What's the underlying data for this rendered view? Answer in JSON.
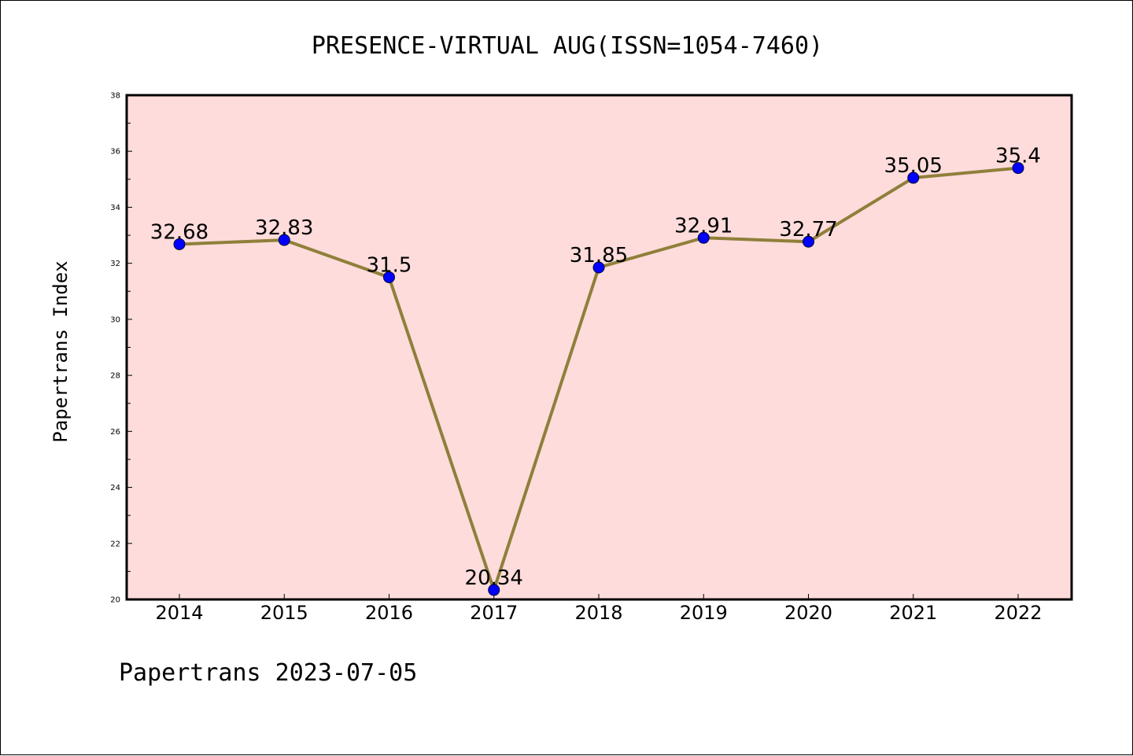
{
  "chart_data": {
    "type": "line",
    "title": "PRESENCE-VIRTUAL AUG(ISSN=1054-7460)",
    "xlabel": "",
    "ylabel": "Papertrans Index",
    "footer": "Papertrans 2023-07-05",
    "categories": [
      "2014",
      "2015",
      "2016",
      "2017",
      "2018",
      "2019",
      "2020",
      "2021",
      "2022"
    ],
    "series": [
      {
        "values": [
          32.68,
          32.83,
          31.5,
          20.34,
          31.85,
          32.91,
          32.77,
          35.05,
          35.4
        ],
        "labels": [
          "32.68",
          "32.83",
          "31.5",
          "20.34",
          "31.85",
          "32.91",
          "32.77",
          "35.05",
          "35.4"
        ]
      }
    ],
    "ylim": [
      20,
      38
    ],
    "yticks": [
      "20",
      "22",
      "24",
      "26",
      "28",
      "30",
      "32",
      "34",
      "36",
      "38"
    ],
    "grid": false,
    "legend": "none",
    "colors": {
      "plot_background": "#fddcdb",
      "line": "#8f7f3a",
      "marker": "#0000ff",
      "axis": "#000000"
    }
  }
}
